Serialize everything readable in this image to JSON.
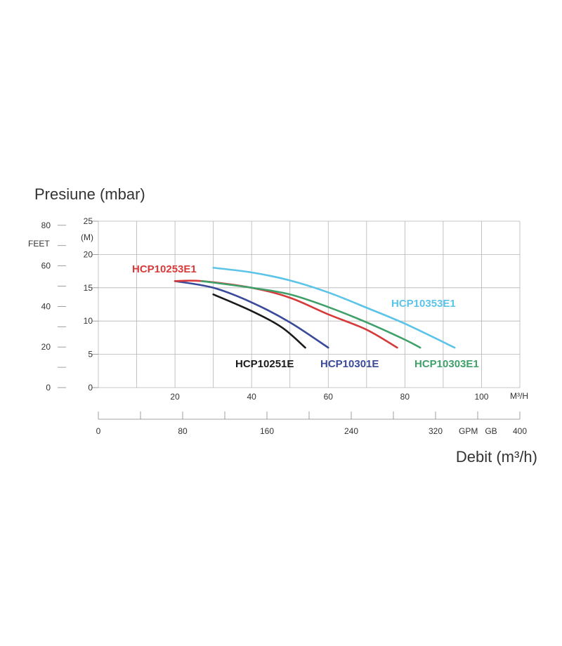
{
  "chart_data": {
    "type": "line",
    "title": "Presiune (mbar)",
    "xlabel": "Debit (m³/h)",
    "x_unit_label": "M³/H",
    "gpm_unit_label": "GPM   GB",
    "feet_label": "FEET",
    "m_label": "(M)",
    "x_ticks": [
      "20",
      "40",
      "60",
      "80",
      "100"
    ],
    "m_ticks": [
      "0",
      "5",
      "10",
      "15",
      "20",
      "25"
    ],
    "feet_ticks": [
      "0",
      "20",
      "40",
      "60",
      "80"
    ],
    "gpm_ticks": [
      "0",
      "80",
      "160",
      "240",
      "320",
      "400"
    ],
    "xlim": [
      0,
      110
    ],
    "ylim": [
      0,
      25
    ],
    "grid": true,
    "series": [
      {
        "name": "HCP10251E",
        "color": "#1a1a1a",
        "x": [
          30,
          40,
          48,
          54
        ],
        "y": [
          14,
          11.5,
          9,
          6
        ]
      },
      {
        "name": "HCP10301E",
        "color": "#3a4a9a",
        "x": [
          20,
          30,
          40,
          50,
          60
        ],
        "y": [
          16,
          15,
          12.8,
          9.8,
          6
        ]
      },
      {
        "name": "HCP10253E1",
        "color": "#d63a3a",
        "x": [
          20,
          27,
          40,
          50,
          60,
          70,
          78
        ],
        "y": [
          16,
          16,
          15,
          13.5,
          11,
          8.7,
          6
        ]
      },
      {
        "name": "HCP10303E1",
        "color": "#3fa06a",
        "x": [
          27,
          40,
          50,
          60,
          70,
          80,
          84
        ],
        "y": [
          16,
          15,
          14,
          12.1,
          9.8,
          7.2,
          6
        ]
      },
      {
        "name": "HCP10353E1",
        "color": "#5bc4e8",
        "x": [
          30,
          40,
          50,
          60,
          70,
          80,
          93
        ],
        "y": [
          18,
          17.3,
          16.1,
          14.3,
          12,
          9.6,
          6
        ]
      }
    ]
  }
}
